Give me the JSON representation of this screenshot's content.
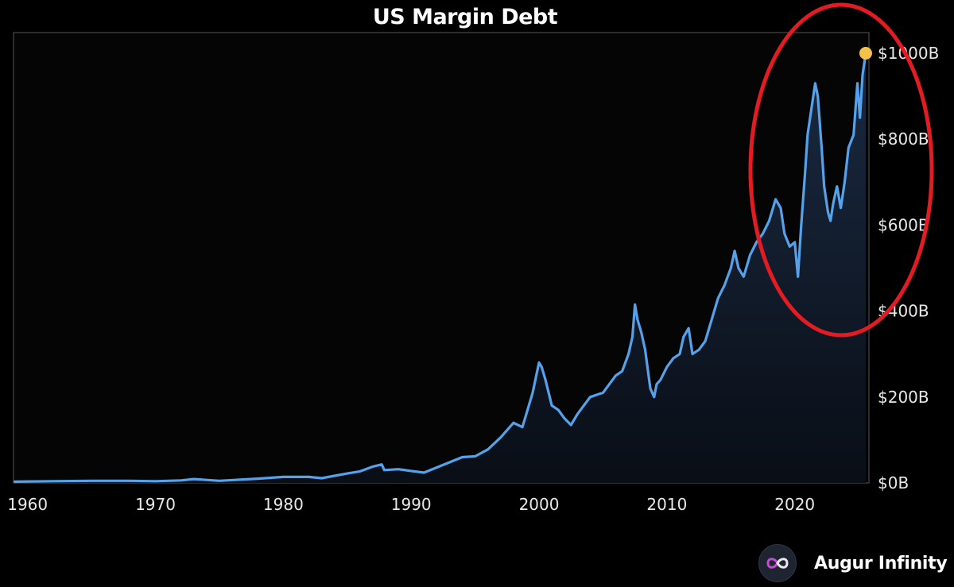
{
  "chart_data": {
    "type": "area",
    "title": "US Margin Debt",
    "xlabel": "",
    "ylabel": "",
    "xlim": [
      1958.9,
      2025.8
    ],
    "ylim": [
      0,
      1000
    ],
    "x_ticks": [
      1960,
      1970,
      1980,
      1990,
      2000,
      2010,
      2020
    ],
    "y_ticks": [
      0,
      200,
      400,
      600,
      800,
      1000
    ],
    "y_tick_labels": [
      "$0B",
      "$200B",
      "$400B",
      "$600B",
      "$800B",
      "$1000B"
    ],
    "grid": false,
    "legend": "none",
    "series": [
      {
        "x": [
          1959,
          1962,
          1965,
          1968,
          1970,
          1972,
          1973,
          1975,
          1978,
          1980,
          1982,
          1983,
          1985,
          1986,
          1987,
          1987.7,
          1987.9,
          1989,
          1990,
          1991,
          1993,
          1994,
          1995,
          1996,
          1997,
          1998,
          1998.7,
          1999,
          1999.5,
          2000.0,
          2000.2,
          2000.5,
          2001.0,
          2001.5,
          2002.0,
          2002.5,
          2003.0,
          2003.5,
          2004.0,
          2005.0,
          2005.5,
          2006.0,
          2006.5,
          2007.0,
          2007.3,
          2007.5,
          2007.7,
          2008.0,
          2008.3,
          2008.7,
          2009.0,
          2009.2,
          2009.5,
          2010.0,
          2010.5,
          2011.0,
          2011.3,
          2011.7,
          2012.0,
          2012.5,
          2013.0,
          2013.5,
          2014.0,
          2014.5,
          2015.0,
          2015.3,
          2015.6,
          2016.0,
          2016.5,
          2017.0,
          2017.5,
          2018.0,
          2018.5,
          2018.9,
          2019.2,
          2019.6,
          2020.0,
          2020.25,
          2020.5,
          2020.8,
          2021.0,
          2021.3,
          2021.6,
          2021.8,
          2022.1,
          2022.3,
          2022.6,
          2022.8,
          2023.0,
          2023.3,
          2023.6,
          2023.9,
          2024.2,
          2024.6,
          2024.9,
          2025.1,
          2025.3,
          2025.55
        ],
        "values": [
          3,
          4,
          5,
          5,
          4,
          6,
          9,
          5,
          10,
          14,
          14,
          11,
          22,
          27,
          38,
          43,
          30,
          32,
          28,
          24,
          48,
          60,
          62,
          78,
          106,
          140,
          130,
          160,
          210,
          280,
          270,
          240,
          180,
          170,
          150,
          135,
          160,
          180,
          200,
          210,
          230,
          250,
          260,
          300,
          340,
          415,
          380,
          350,
          310,
          220,
          200,
          230,
          240,
          270,
          290,
          300,
          340,
          360,
          300,
          310,
          330,
          380,
          430,
          460,
          500,
          540,
          500,
          480,
          530,
          560,
          580,
          610,
          660,
          640,
          580,
          550,
          560,
          480,
          600,
          720,
          810,
          870,
          930,
          900,
          780,
          690,
          630,
          610,
          650,
          690,
          640,
          700,
          780,
          810,
          930,
          850,
          950,
          1000
        ]
      }
    ],
    "highlight_point": {
      "x": 2025.55,
      "y": 1000
    },
    "colors": {
      "line": "#56a2ea",
      "area_top": "#1b2c45",
      "marker": "#f4c14a",
      "annotation_ellipse": "#e31c23",
      "axis_text": "#e8e8e8",
      "frame": "#3a3a3a"
    }
  },
  "brand": {
    "name": "Augur Infinity",
    "icon": "infinity-logo-icon"
  }
}
